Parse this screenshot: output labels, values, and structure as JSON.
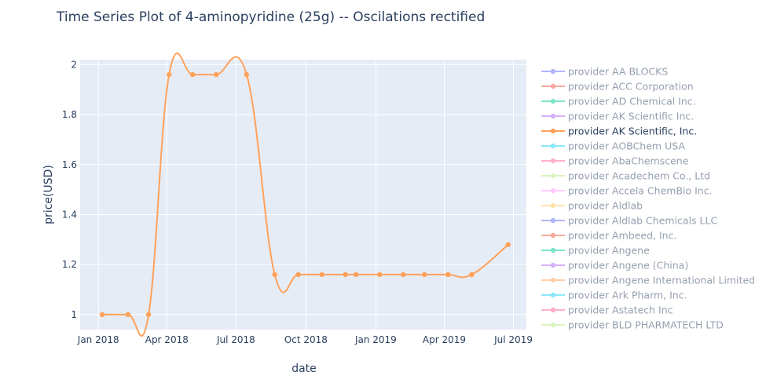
{
  "chart_data": {
    "type": "line",
    "title": "Time Series Plot of 4-aminopyridine (25g) -- Oscilations rectified",
    "xlabel": "date",
    "ylabel": "price(USD)",
    "xlim": [
      "2017-12-08",
      "2019-07-18"
    ],
    "ylim": [
      0.94,
      2.02
    ],
    "grid": true,
    "legend_position": "right",
    "background_color": "#e5ecf6",
    "x_ticks": [
      {
        "date": "2018-01-01",
        "label": "Jan 2018"
      },
      {
        "date": "2018-04-01",
        "label": "Apr 2018"
      },
      {
        "date": "2018-07-01",
        "label": "Jul 2018"
      },
      {
        "date": "2018-10-01",
        "label": "Oct 2018"
      },
      {
        "date": "2019-01-01",
        "label": "Jan 2019"
      },
      {
        "date": "2019-04-01",
        "label": "Apr 2019"
      },
      {
        "date": "2019-07-01",
        "label": "Jul 2019"
      }
    ],
    "y_ticks": [
      {
        "value": 1,
        "label": "1"
      },
      {
        "value": 1.2,
        "label": "1.2"
      },
      {
        "value": 1.4,
        "label": "1.4"
      },
      {
        "value": 1.6,
        "label": "1.6"
      },
      {
        "value": 1.8,
        "label": "1.8"
      },
      {
        "value": 2,
        "label": "2"
      }
    ],
    "series": [
      {
        "name": "provider AA BLOCKS",
        "color": "#636efa",
        "visible": false,
        "points": []
      },
      {
        "name": "provider ACC Corporation",
        "color": "#ef553b",
        "visible": false,
        "points": []
      },
      {
        "name": "provider AD Chemical Inc.",
        "color": "#00cc96",
        "visible": false,
        "points": []
      },
      {
        "name": "provider AK Scientific Inc.",
        "color": "#ab63fa",
        "visible": false,
        "points": []
      },
      {
        "name": "provider AK Scientific, Inc.",
        "color": "#ffa15a",
        "visible": true,
        "points": [
          {
            "x": "2018-01-06",
            "y": 1.0
          },
          {
            "x": "2018-02-09",
            "y": 1.0
          },
          {
            "x": "2018-03-08",
            "y": 1.0
          },
          {
            "x": "2018-04-04",
            "y": 1.96
          },
          {
            "x": "2018-05-05",
            "y": 1.96
          },
          {
            "x": "2018-06-05",
            "y": 1.96
          },
          {
            "x": "2018-07-15",
            "y": 1.96
          },
          {
            "x": "2018-08-21",
            "y": 1.16
          },
          {
            "x": "2018-09-21",
            "y": 1.16
          },
          {
            "x": "2018-10-22",
            "y": 1.16
          },
          {
            "x": "2018-11-22",
            "y": 1.16
          },
          {
            "x": "2018-12-06",
            "y": 1.16
          },
          {
            "x": "2019-01-06",
            "y": 1.16
          },
          {
            "x": "2019-02-06",
            "y": 1.16
          },
          {
            "x": "2019-03-06",
            "y": 1.16
          },
          {
            "x": "2019-04-06",
            "y": 1.16
          },
          {
            "x": "2019-05-07",
            "y": 1.16
          },
          {
            "x": "2019-06-24",
            "y": 1.28
          }
        ]
      },
      {
        "name": "provider AOBChem USA",
        "color": "#19d3f3",
        "visible": false,
        "points": []
      },
      {
        "name": "provider AbaChemscene",
        "color": "#ff6692",
        "visible": false,
        "points": []
      },
      {
        "name": "provider Acadechem Co., Ltd",
        "color": "#b6e880",
        "visible": false,
        "points": []
      },
      {
        "name": "provider Accela ChemBio Inc.",
        "color": "#ff97ff",
        "visible": false,
        "points": []
      },
      {
        "name": "provider Aldlab",
        "color": "#fecb52",
        "visible": false,
        "points": []
      },
      {
        "name": "provider Aldlab Chemicals LLC",
        "color": "#636efa",
        "visible": false,
        "points": []
      },
      {
        "name": "provider Ambeed, Inc.",
        "color": "#ef553b",
        "visible": false,
        "points": []
      },
      {
        "name": "provider Angene",
        "color": "#00cc96",
        "visible": false,
        "points": []
      },
      {
        "name": "provider Angene (China)",
        "color": "#ab63fa",
        "visible": false,
        "points": []
      },
      {
        "name": "provider Angene International Limited",
        "color": "#ffa15a",
        "visible": false,
        "points": []
      },
      {
        "name": "provider Ark Pharm, Inc.",
        "color": "#19d3f3",
        "visible": false,
        "points": []
      },
      {
        "name": "provider Astatech Inc",
        "color": "#ff6692",
        "visible": false,
        "points": []
      },
      {
        "name": "provider BLD PHARMATECH LTD",
        "color": "#b6e880",
        "visible": false,
        "points": []
      }
    ]
  }
}
